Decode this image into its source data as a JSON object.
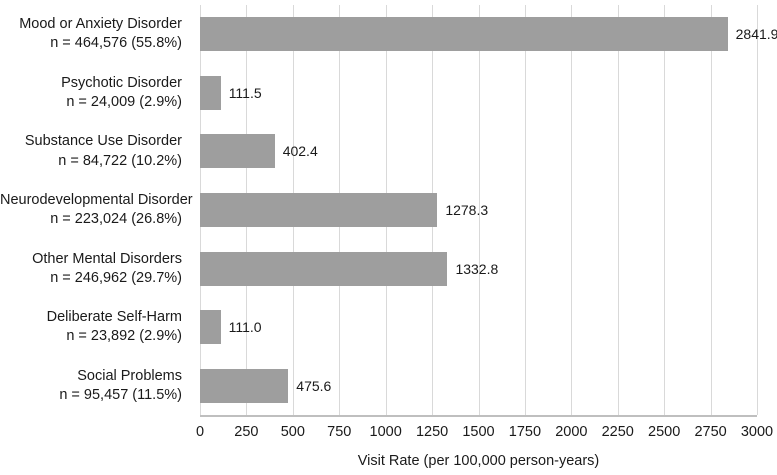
{
  "figure": {
    "background": "#ffffff"
  },
  "chart_data": {
    "type": "bar",
    "orientation": "horizontal",
    "title": "",
    "xlabel": "Visit Rate (per 100,000 person-years)",
    "ylabel": "",
    "xlim": [
      0,
      3000
    ],
    "xticks": [
      "0",
      "250",
      "500",
      "750",
      "1000",
      "1250",
      "1500",
      "1750",
      "2000",
      "2250",
      "2500",
      "2750",
      "3000"
    ],
    "grid": "vertical gridlines",
    "legend": "none",
    "bar_color": "#9e9e9e",
    "gridline_color": "#d9d9d9",
    "axis_line_color": "#bfbfbf",
    "text_color": "#1a1a1a",
    "categories": [
      "Mood or Anxiety Disorder",
      "Psychotic Disorder",
      "Substance Use Disorder",
      "Neurodevelopmental Disorder",
      "Other Mental Disorders",
      "Deliberate Self-Harm",
      "Social Problems"
    ],
    "category_sublabels": [
      "n = 464,576 (55.8%)",
      "n = 24,009 (2.9%)",
      "n = 84,722 (10.2%)",
      "n = 223,024 (26.8%)",
      "n = 246,962 (29.7%)",
      "n = 23,892 (2.9%)",
      "n = 95,457 (11.5%)"
    ],
    "values": [
      2841.9,
      111.5,
      402.4,
      1278.3,
      1332.8,
      111.0,
      475.6
    ],
    "value_labels": [
      "2841.9",
      "111.5",
      "402.4",
      "1278.3",
      "1332.8",
      "111.0",
      "475.6"
    ]
  }
}
